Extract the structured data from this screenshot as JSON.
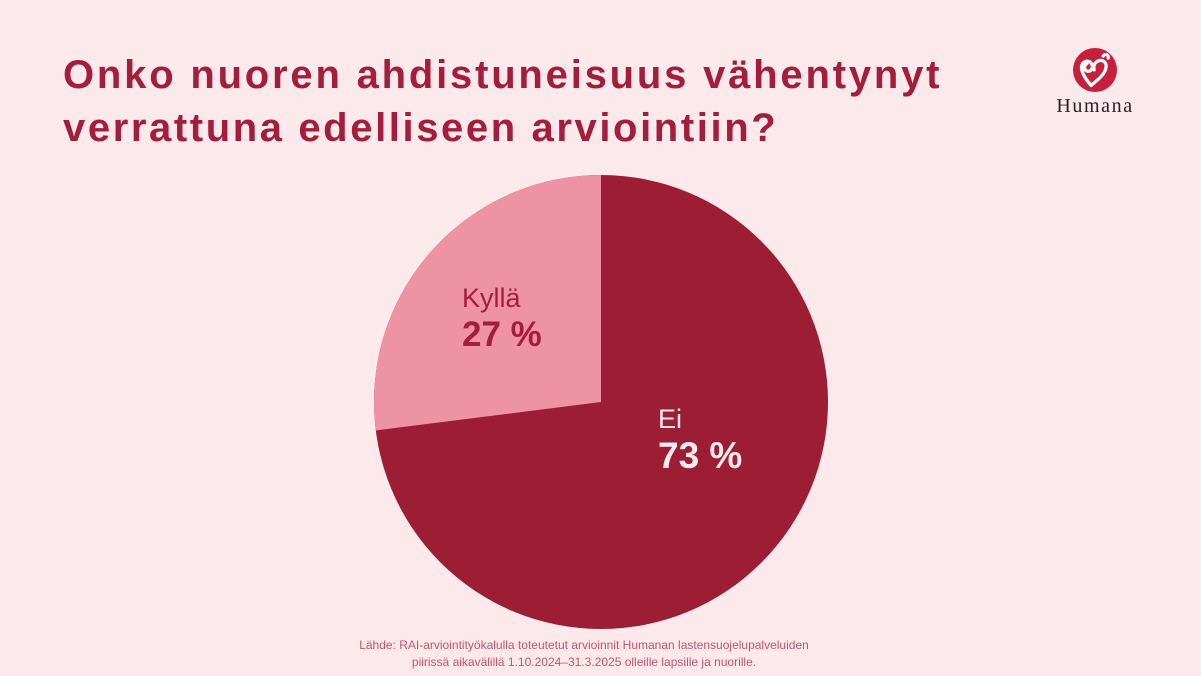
{
  "header": {
    "title_line1": "Onko nuoren ahdistuneisuus vähentynyt",
    "title_line2": "verrattuna edelliseen arviointiin?",
    "title_color": "#a41e3b"
  },
  "logo": {
    "name": "Humana",
    "circle_color": "#c81f3c"
  },
  "chart_data": {
    "type": "pie",
    "categories": [
      "Kyllä",
      "Ei"
    ],
    "values": [
      27,
      73
    ],
    "labels_display": [
      "27 %",
      "73 %"
    ],
    "colors": [
      "#ee93a3",
      "#9d1d35"
    ],
    "label_text_colors": [
      "#a41e3b",
      "#fce9ec"
    ],
    "title": "Onko nuoren ahdistuneisuus vähentynyt verrattuna edelliseen arviointiin?",
    "legend": "none",
    "start_angle_deg": 90,
    "direction_slice0": "counterclockwise-from-top"
  },
  "footer": {
    "line1": "Lähde: RAI-arviointityökalulla toteutetut arvioinnit Humanan lastensuojelupalveluiden",
    "line2": "piirissä aikavälillä 1.10.2024–31.3.2025 olleille lapsille ja nuorille.",
    "color": "#c4566f"
  },
  "page": {
    "background": "#fce9ec"
  }
}
